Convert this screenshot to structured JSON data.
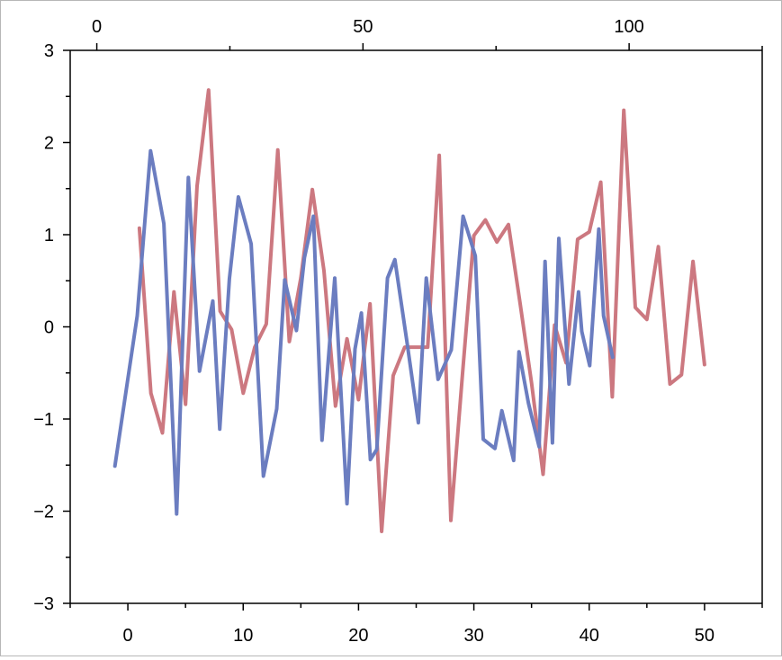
{
  "chart_data": {
    "type": "line",
    "title": "",
    "xlabel": "",
    "ylabel": "",
    "grid": false,
    "legend": "none",
    "x_bottom": {
      "range": [
        -5,
        55
      ],
      "ticks": [
        0,
        10,
        20,
        30,
        40,
        50
      ],
      "tick_labels": [
        "0",
        "10",
        "20",
        "30",
        "40",
        "50"
      ]
    },
    "x_top": {
      "range": [
        -5,
        125
      ],
      "ticks": [
        0,
        50,
        100
      ],
      "tick_labels": [
        "0",
        "50",
        "100"
      ]
    },
    "y_left": {
      "range": [
        -3,
        3
      ],
      "ticks": [
        -3,
        -2,
        -1,
        0,
        1,
        2,
        3
      ],
      "tick_labels": [
        "−3",
        "−2",
        "−1",
        "0",
        "1",
        "2",
        "3"
      ]
    },
    "series": [
      {
        "color": "#cc7880",
        "axis": "bottom",
        "x": [
          1,
          2,
          3,
          4,
          5,
          6,
          7,
          8,
          9,
          10,
          11,
          12,
          13,
          14,
          15,
          16,
          17,
          18,
          19,
          20,
          21,
          22,
          23,
          24,
          25,
          26,
          27,
          28,
          29,
          30,
          31,
          32,
          33,
          34,
          35,
          36,
          37,
          38,
          39,
          40,
          41,
          42,
          43,
          44,
          45,
          46,
          47,
          48,
          49,
          50
        ],
        "values": [
          1.07,
          -0.72,
          -1.15,
          0.38,
          -0.84,
          1.53,
          2.57,
          0.17,
          -0.03,
          -0.72,
          -0.22,
          0.03,
          1.92,
          -0.16,
          0.53,
          1.49,
          0.61,
          -0.86,
          -0.13,
          -0.79,
          0.25,
          -2.22,
          -0.53,
          -0.22,
          -0.22,
          -0.22,
          1.86,
          -2.1,
          -0.53,
          0.99,
          1.16,
          0.92,
          1.11,
          0.26,
          -0.61,
          -1.6,
          0.02,
          -0.39,
          0.95,
          1.03,
          1.57,
          -0.76,
          2.35,
          0.21,
          0.08,
          0.87,
          -0.62,
          -0.52,
          0.71,
          -0.41
        ]
      },
      {
        "color": "#6b7dc0",
        "axis": "top",
        "x": [
          3.4,
          7.6,
          10.1,
          12.6,
          15,
          17.2,
          19.3,
          21.8,
          23.1,
          24.9,
          26.6,
          29,
          31.3,
          33.8,
          35.3,
          37.5,
          39,
          40.7,
          42.3,
          44.7,
          47,
          48.5,
          49.7,
          51.4,
          52.6,
          54.6,
          56,
          58.2,
          60.4,
          61.9,
          64.1,
          66.6,
          68.8,
          71.1,
          72.6,
          74.8,
          76.1,
          78.3,
          79.3,
          81.1,
          83.1,
          84.2,
          85.6,
          86.8,
          88.7,
          90.5,
          91.1,
          92.6,
          94.3,
          95.2,
          96.9,
          98.7,
          100,
          102.4,
          104
        ],
        "values": [
          -1.51,
          0.12,
          1.91,
          1.12,
          -2.03,
          1.62,
          -0.48,
          0.28,
          -1.11,
          0.52,
          1.41,
          0.9,
          -1.62,
          -0.89,
          0.51,
          -0.04,
          0.75,
          1.2,
          -1.23,
          0.53,
          -1.92,
          -0.24,
          0.15,
          -1.44,
          -1.33,
          0.53,
          0.73,
          -0.14,
          -1.04,
          0.53,
          -0.57,
          -0.25,
          1.2,
          0.77,
          -1.22,
          -1.32,
          -0.91,
          -1.45,
          -0.27,
          -0.83,
          -1.3,
          0.71,
          -1.26,
          0.96,
          -0.62,
          0.38,
          -0.05,
          -0.42,
          1.06,
          0.12,
          -0.33,
          null,
          null,
          null,
          null
        ]
      }
    ]
  }
}
